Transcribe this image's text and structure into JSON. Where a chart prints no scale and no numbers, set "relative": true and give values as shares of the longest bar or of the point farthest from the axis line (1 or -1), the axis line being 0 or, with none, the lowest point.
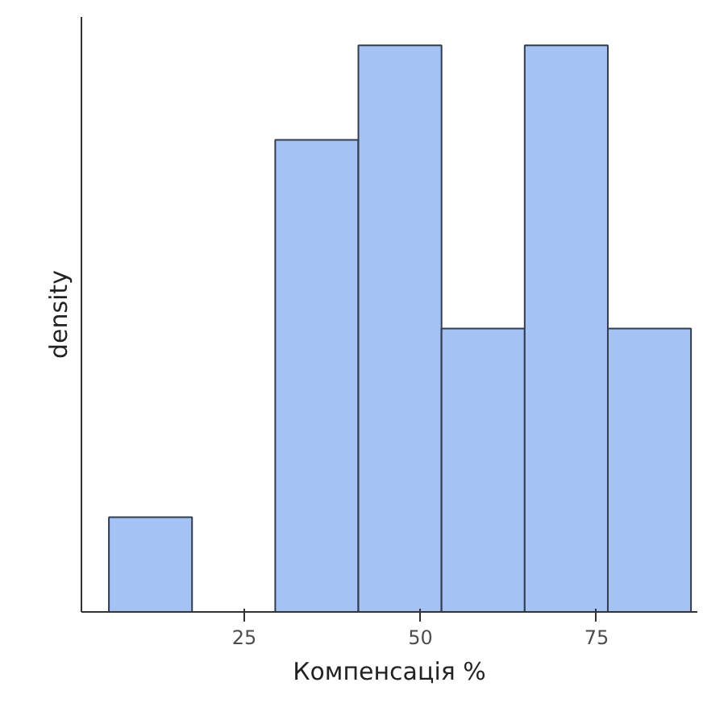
{
  "chart_data": {
    "type": "bar",
    "xlabel": "Компенсація %",
    "ylabel": "density",
    "relative": true,
    "x": [
      11.7,
      23.5,
      35.3,
      47.1,
      58.9,
      70.7,
      82.5
    ],
    "values": [
      0.167,
      0,
      0.833,
      1,
      0.5,
      1,
      0.5
    ],
    "color": "#a4c2f4",
    "xlim": [
      1.9,
      89.3
    ],
    "xticks": [
      25,
      50,
      75
    ],
    "grid": false
  }
}
